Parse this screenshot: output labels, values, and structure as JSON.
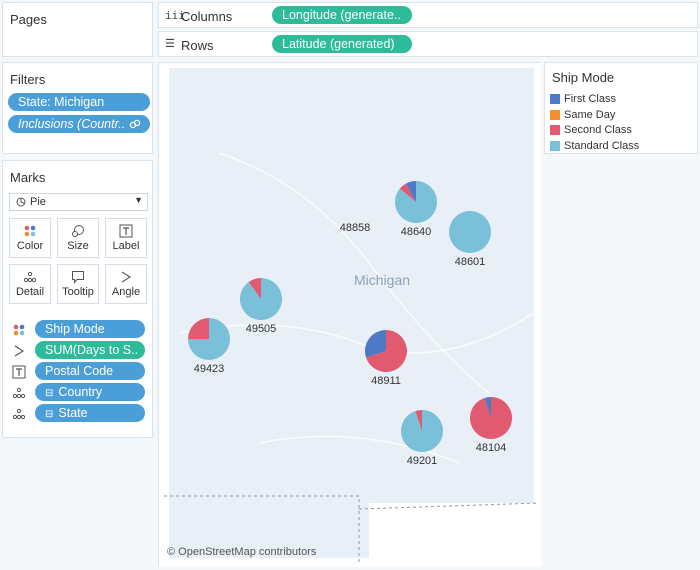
{
  "pages": {
    "title": "Pages"
  },
  "columns": {
    "label": "Columns",
    "pill": "Longitude (generate.."
  },
  "rows": {
    "label": "Rows",
    "pill": "Latitude (generated)"
  },
  "filters": {
    "title": "Filters",
    "items": [
      "State: Michigan",
      "Inclusions (Countr.."
    ]
  },
  "marks": {
    "title": "Marks",
    "type": "Pie",
    "buttons": [
      "Color",
      "Size",
      "Label",
      "Detail",
      "Tooltip",
      "Angle"
    ],
    "fields": [
      {
        "label": "Ship Mode",
        "kind": "color",
        "color": "#4b9fd9"
      },
      {
        "label": "SUM(Days to S..",
        "kind": "angle",
        "color": "#2dbb9a"
      },
      {
        "label": "Postal Code",
        "kind": "label",
        "color": "#4b9fd9"
      },
      {
        "label": "Country",
        "kind": "detail",
        "color": "#4b9fd9"
      },
      {
        "label": "State",
        "kind": "detail",
        "color": "#4b9fd9"
      }
    ]
  },
  "legend": {
    "title": "Ship Mode",
    "items": [
      {
        "label": "First Class",
        "color": "#4e79c6"
      },
      {
        "label": "Same Day",
        "color": "#f28e2b"
      },
      {
        "label": "Second Class",
        "color": "#e15a6f"
      },
      {
        "label": "Standard Class",
        "color": "#79c0d8"
      }
    ]
  },
  "map": {
    "region_label": "Michigan",
    "attribution": "© OpenStreetMap contributors"
  },
  "chart_data": {
    "type": "pie",
    "slice_order": [
      "Standard Class",
      "Second Class",
      "First Class"
    ],
    "pies": [
      {
        "postal_code": "48858",
        "shares": {
          "First Class": 0,
          "Second Class": 0,
          "Standard Class": 0
        }
      },
      {
        "postal_code": "48640",
        "shares": {
          "First Class": 0.08,
          "Second Class": 0.06,
          "Standard Class": 0.86
        }
      },
      {
        "postal_code": "48601",
        "shares": {
          "First Class": 0,
          "Second Class": 0,
          "Standard Class": 1
        }
      },
      {
        "postal_code": "49505",
        "shares": {
          "First Class": 0,
          "Second Class": 0.1,
          "Standard Class": 0.9
        }
      },
      {
        "postal_code": "49423",
        "shares": {
          "First Class": 0,
          "Second Class": 0.25,
          "Standard Class": 0.75
        }
      },
      {
        "postal_code": "48911",
        "shares": {
          "First Class": 0.3,
          "Second Class": 0.7,
          "Standard Class": 0
        }
      },
      {
        "postal_code": "49201",
        "shares": {
          "First Class": 0,
          "Second Class": 0.05,
          "Standard Class": 0.95
        }
      },
      {
        "postal_code": "48104",
        "shares": {
          "First Class": 0.05,
          "Second Class": 0.95,
          "Standard Class": 0
        }
      }
    ]
  }
}
